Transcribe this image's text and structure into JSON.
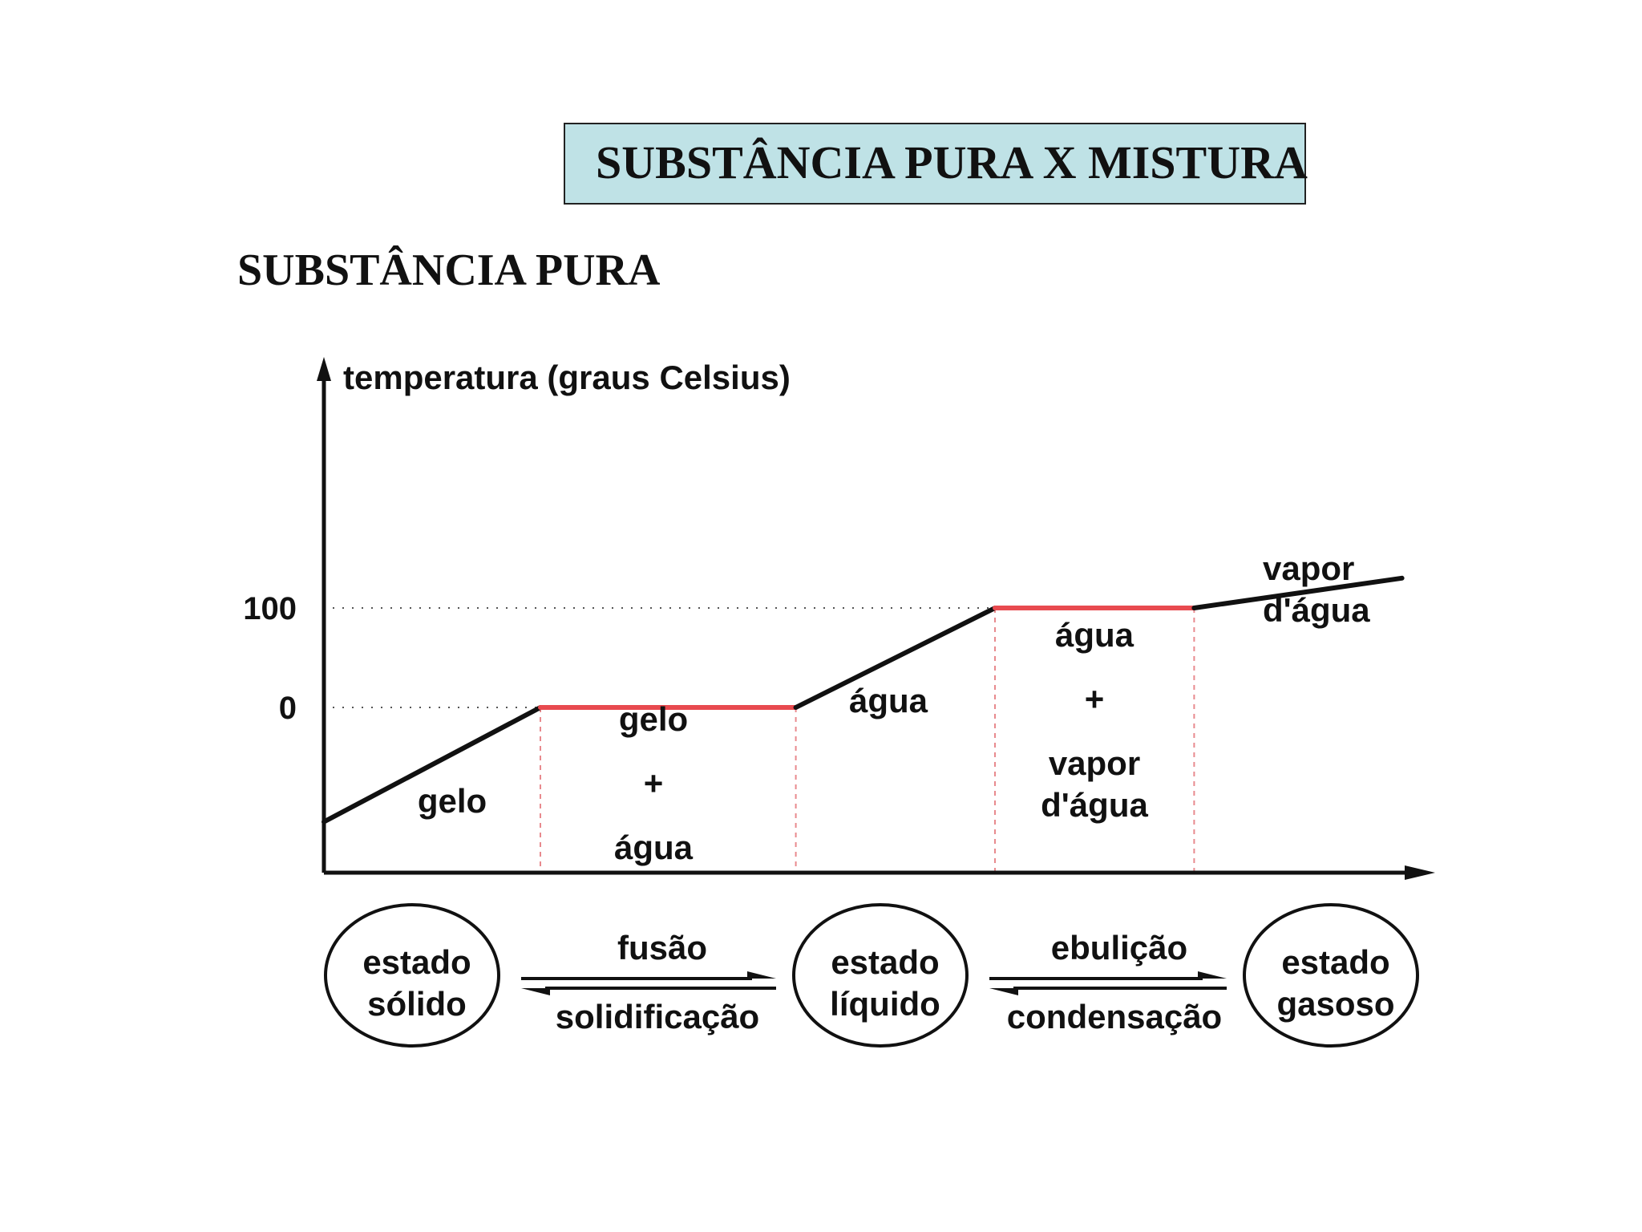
{
  "header": {
    "title": "SUBSTÂNCIA PURA X MISTURA",
    "subtitle": "SUBSTÂNCIA PURA"
  },
  "colors": {
    "title_box_bg": "#bfe2e6",
    "curve": "#111111",
    "plateau": "#e84a4f",
    "guide_dots": "#555555",
    "phase_dividers": "#e88a8e"
  },
  "chart_data": {
    "type": "line",
    "ylabel": "temperatura (graus Celsius)",
    "xlabel": "",
    "y_ticks": [
      {
        "value": 0,
        "label": "0"
      },
      {
        "value": 100,
        "label": "100"
      }
    ],
    "series": [
      {
        "points": [
          {
            "t": 0,
            "temp": -115
          },
          {
            "t": 1,
            "temp": 0
          },
          {
            "t": 2.18,
            "temp": 0
          },
          {
            "t": 3.1,
            "temp": 100
          },
          {
            "t": 4.02,
            "temp": 100
          },
          {
            "t": 4.98,
            "temp": 130
          }
        ]
      }
    ],
    "plateaus": [
      {
        "t_start": 1,
        "t_end": 2.18,
        "temp": 0
      },
      {
        "t_start": 3.1,
        "t_end": 4.02,
        "temp": 100
      }
    ],
    "region_labels": [
      {
        "lines": [
          "gelo"
        ]
      },
      {
        "lines": [
          "gelo",
          "+",
          "água"
        ]
      },
      {
        "lines": [
          "água"
        ]
      },
      {
        "lines": [
          "água",
          "+",
          "vapor",
          "d'água"
        ]
      },
      {
        "lines": [
          "vapor",
          "d'água"
        ]
      }
    ]
  },
  "states": [
    {
      "lines": [
        "estado",
        "sólido"
      ]
    },
    {
      "lines": [
        "estado",
        "líquido"
      ]
    },
    {
      "lines": [
        "estado",
        "gasoso"
      ]
    }
  ],
  "transitions": [
    {
      "forward": "fusão",
      "backward": "solidificação"
    },
    {
      "forward": "ebulição",
      "backward": "condensação"
    }
  ]
}
